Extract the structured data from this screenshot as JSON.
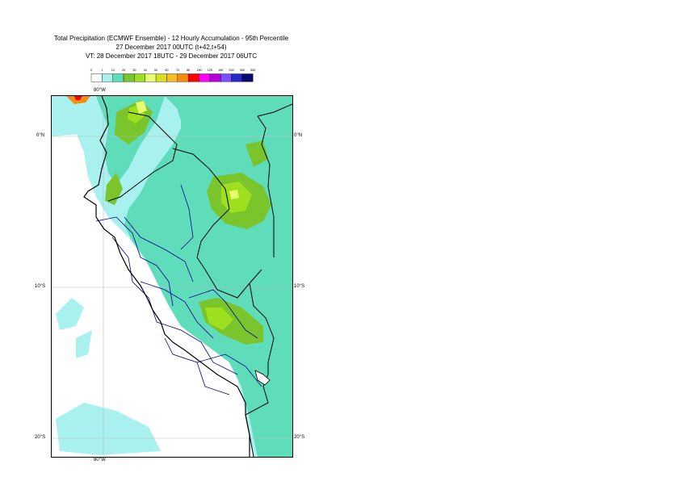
{
  "title": {
    "line1": "Total Precipitation (ECMWF Ensemble) - 12 Hourly Accumulation - 95th Percentile",
    "line2": "27 December 2017 00UTC (t+42,t+54)",
    "line3": "VT: 28 December 2017 18UTC - 29 December 2017 06UTC"
  },
  "legend": {
    "levels": [
      "0",
      "1",
      "10",
      "20",
      "30",
      "40",
      "50",
      "60",
      "70",
      "80",
      "100",
      "125",
      "150",
      "200",
      "300",
      "500"
    ],
    "colors": [
      "#ffffff",
      "#a8f1ef",
      "#5fdcba",
      "#7ac42c",
      "#9fe01e",
      "#e6ff6e",
      "#d7e01e",
      "#f5be1c",
      "#f58c0a",
      "#ff0000",
      "#ff00ff",
      "#b400dc",
      "#7850ff",
      "#2828c8",
      "#0a0a6e"
    ]
  },
  "map": {
    "lon_top_label": "80°W",
    "lon_bottom_label": "80°W",
    "lat_labels": {
      "equator": "0°N",
      "s10": "10°S",
      "s20": "20°S"
    },
    "fill_colors": {
      "light": "#a8f1ef",
      "medium": "#5fdcba",
      "green": "#7ac42c",
      "yellowgreen": "#9fe01e",
      "yellow": "#e6ff6e",
      "orange": "#f58c0a",
      "red": "#ff0000"
    },
    "line_colors": {
      "coast": "#000000",
      "borders": "#000000",
      "regions": "#00008c"
    }
  }
}
